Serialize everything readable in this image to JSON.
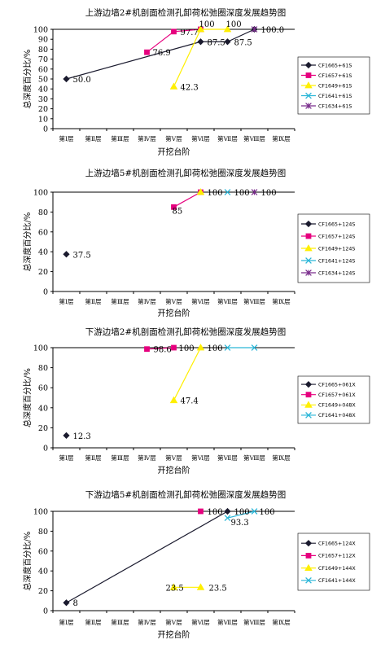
{
  "colors": {
    "series": [
      "#1a1a2e",
      "#e6007e",
      "#ffef00",
      "#2ab6d8",
      "#7a2d8c"
    ],
    "axis": "#000000",
    "legend_border": "#000000"
  },
  "chart_data": [
    {
      "type": "line",
      "title": "上游边墙2#机剖面检测孔卸荷松弛圈深度发展趋势图",
      "xlabel": "开挖台阶",
      "ylabel": "总深度百分比/%",
      "categories": [
        "第Ⅰ层",
        "第Ⅱ层",
        "第Ⅲ层",
        "第Ⅳ层",
        "第Ⅴ层",
        "第Ⅵ层",
        "第Ⅶ层",
        "第Ⅷ层",
        "第Ⅸ层"
      ],
      "ylim": [
        0,
        100
      ],
      "yticks": [
        0,
        10,
        20,
        30,
        40,
        50,
        60,
        70,
        80,
        90,
        100
      ],
      "legend_position": "right",
      "series": [
        {
          "name": "CF1665+61S",
          "marker": "diamond",
          "points": [
            [
              1,
              50.0
            ],
            [
              6,
              87.5
            ],
            [
              7,
              87.5
            ],
            [
              8,
              100.0
            ]
          ]
        },
        {
          "name": "CF1657+61S",
          "marker": "square",
          "points": [
            [
              4,
              76.9
            ],
            [
              5,
              97.7
            ],
            [
              6,
              100
            ]
          ]
        },
        {
          "name": "CF1649+61S",
          "marker": "triangle",
          "points": [
            [
              5,
              42.3
            ],
            [
              6,
              100
            ],
            [
              7,
              100
            ]
          ]
        },
        {
          "name": "CF1641+61S",
          "marker": "x",
          "points": []
        },
        {
          "name": "CF1634+61S",
          "marker": "star",
          "points": [
            [
              8,
              100.0
            ]
          ]
        }
      ],
      "labels": [
        {
          "text": "50.0",
          "x": 1,
          "y": 50.0
        },
        {
          "text": "76.9",
          "x": 4,
          "y": 76.9
        },
        {
          "text": "97.7",
          "x": 5,
          "y": 97.7
        },
        {
          "text": "42.3",
          "x": 5,
          "y": 42.3
        },
        {
          "text": "100",
          "x": 6,
          "y": 100
        },
        {
          "text": "87.5",
          "x": 6,
          "y": 87.5
        },
        {
          "text": "100",
          "x": 7,
          "y": 100
        },
        {
          "text": "87.5",
          "x": 7,
          "y": 87.5
        },
        {
          "text": "100.0",
          "x": 8,
          "y": 100.0
        }
      ]
    },
    {
      "type": "line",
      "title": "上游边墙5#机剖面检测孔卸荷松弛圈深度发展趋势图",
      "xlabel": "开挖台阶",
      "ylabel": "总深度百分比/%",
      "categories": [
        "第Ⅰ层",
        "第Ⅱ层",
        "第Ⅲ层",
        "第Ⅳ层",
        "第Ⅴ层",
        "第Ⅵ层",
        "第Ⅶ层",
        "第Ⅷ层",
        "第Ⅸ层"
      ],
      "ylim": [
        0,
        100
      ],
      "yticks": [
        0,
        20,
        40,
        60,
        80,
        100
      ],
      "legend_position": "right",
      "series": [
        {
          "name": "CF1665+124S",
          "marker": "diamond",
          "points": [
            [
              1,
              37.5
            ]
          ]
        },
        {
          "name": "CF1657+124S",
          "marker": "square",
          "points": [
            [
              5,
              85
            ],
            [
              6,
              100
            ]
          ]
        },
        {
          "name": "CF1649+124S",
          "marker": "triangle",
          "points": [
            [
              6,
              100
            ]
          ]
        },
        {
          "name": "CF1641+124S",
          "marker": "x",
          "points": [
            [
              7,
              100
            ]
          ]
        },
        {
          "name": "CF1634+124S",
          "marker": "star",
          "points": [
            [
              8,
              100
            ]
          ]
        }
      ],
      "labels": [
        {
          "text": "37.5",
          "x": 1,
          "y": 37.5
        },
        {
          "text": "85",
          "x": 5,
          "y": 85
        },
        {
          "text": "100",
          "x": 6,
          "y": 100
        },
        {
          "text": "100",
          "x": 7,
          "y": 100
        },
        {
          "text": "100",
          "x": 8,
          "y": 100
        }
      ]
    },
    {
      "type": "line",
      "title": "下游边墙2#机剖面检测孔卸荷松弛圈深度发展趋势图",
      "xlabel": "开挖台阶",
      "ylabel": "总深度百分比/%",
      "categories": [
        "第Ⅰ层",
        "第Ⅱ层",
        "第Ⅲ层",
        "第Ⅳ层",
        "第Ⅴ层",
        "第Ⅵ层",
        "第Ⅶ层",
        "第Ⅷ层",
        "第Ⅸ层"
      ],
      "ylim": [
        0,
        100
      ],
      "yticks": [
        0,
        20,
        40,
        60,
        80,
        100
      ],
      "legend_position": "right",
      "series": [
        {
          "name": "CF1665+061X",
          "marker": "diamond",
          "points": [
            [
              1,
              12.3
            ]
          ]
        },
        {
          "name": "CF1657+061X",
          "marker": "square",
          "points": [
            [
              4,
              98.6
            ],
            [
              5,
              100
            ]
          ]
        },
        {
          "name": "CF1649+048X",
          "marker": "triangle",
          "points": [
            [
              5,
              47.4
            ],
            [
              6,
              100
            ]
          ]
        },
        {
          "name": "CF1641+048X",
          "marker": "x",
          "points": [
            [
              7,
              100
            ],
            [
              8,
              100
            ]
          ]
        }
      ],
      "labels": [
        {
          "text": "12.3",
          "x": 1,
          "y": 12.3
        },
        {
          "text": "98.6",
          "x": 4,
          "y": 98.6
        },
        {
          "text": "100",
          "x": 5,
          "y": 100
        },
        {
          "text": "47.4",
          "x": 5,
          "y": 47.4
        },
        {
          "text": "100",
          "x": 6,
          "y": 100
        }
      ]
    },
    {
      "type": "line",
      "title": "下游边墙5#机剖面检测孔卸荷松弛圈深度发展趋势图",
      "xlabel": "开挖台阶",
      "ylabel": "总深度百分比/%",
      "categories": [
        "第Ⅰ层",
        "第Ⅱ层",
        "第Ⅲ层",
        "第Ⅳ层",
        "第Ⅴ层",
        "第Ⅵ层",
        "第Ⅶ层",
        "第Ⅷ层",
        "第Ⅸ层"
      ],
      "ylim": [
        0,
        100
      ],
      "yticks": [
        0,
        20,
        40,
        60,
        80,
        100
      ],
      "legend_position": "right",
      "series": [
        {
          "name": "CF1665+124X",
          "marker": "diamond",
          "points": [
            [
              1,
              8
            ],
            [
              7,
              100
            ]
          ]
        },
        {
          "name": "CF1657+112X",
          "marker": "square",
          "points": [
            [
              6,
              100
            ]
          ]
        },
        {
          "name": "CF1649+144X",
          "marker": "triangle",
          "points": [
            [
              5,
              23.5
            ],
            [
              6,
              23.5
            ]
          ]
        },
        {
          "name": "CF1641+144X",
          "marker": "x",
          "points": [
            [
              7,
              93.3
            ],
            [
              8,
              100
            ]
          ]
        }
      ],
      "labels": [
        {
          "text": "8",
          "x": 1,
          "y": 8
        },
        {
          "text": "100",
          "x": 6,
          "y": 100
        },
        {
          "text": "100",
          "x": 7,
          "y": 100
        },
        {
          "text": "100",
          "x": 8,
          "y": 100
        },
        {
          "text": "93.3",
          "x": 7,
          "y": 93.3
        },
        {
          "text": "23.5",
          "x": 5,
          "y": 23.5
        },
        {
          "text": "23.5",
          "x": 6,
          "y": 23.5
        }
      ]
    }
  ]
}
